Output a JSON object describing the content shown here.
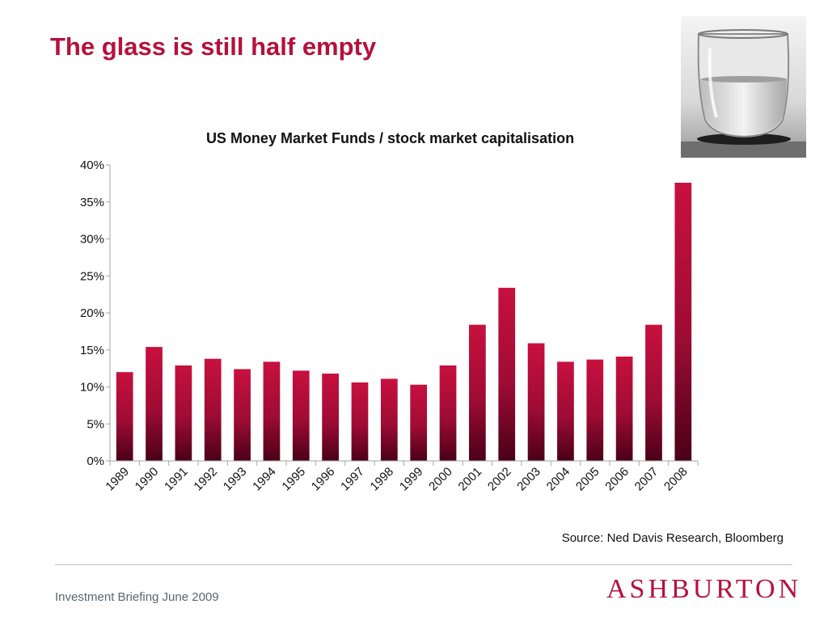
{
  "slide": {
    "title": "The glass is still half empty",
    "source": "Source: Ned Davis Research, Bloomberg",
    "footer": "Investment Briefing June 2009",
    "logo": "ASHBURTON",
    "photo_icon": "water-glass-photo"
  },
  "colors": {
    "title": "#b5113e",
    "bar_top": "#c8103f",
    "bar_bottom": "#4a0019",
    "axis": "#a6a6a6"
  },
  "chart_data": {
    "type": "bar",
    "title": "US Money Market Funds / stock market capitalisation",
    "xlabel": "",
    "ylabel": "",
    "categories": [
      "1989",
      "1990",
      "1991",
      "1992",
      "1993",
      "1994",
      "1995",
      "1996",
      "1997",
      "1998",
      "1999",
      "2000",
      "2001",
      "2002",
      "2003",
      "2004",
      "2005",
      "2006",
      "2007",
      "2008"
    ],
    "values": [
      12.0,
      15.4,
      12.9,
      13.8,
      12.4,
      13.4,
      12.2,
      11.8,
      10.6,
      11.1,
      10.3,
      12.9,
      18.4,
      23.4,
      15.9,
      13.4,
      13.7,
      14.1,
      18.4,
      37.6
    ],
    "ylim": [
      0,
      40
    ],
    "yticks": [
      "0%",
      "5%",
      "10%",
      "15%",
      "20%",
      "25%",
      "30%",
      "35%",
      "40%"
    ],
    "grid": false,
    "legend": "none"
  }
}
